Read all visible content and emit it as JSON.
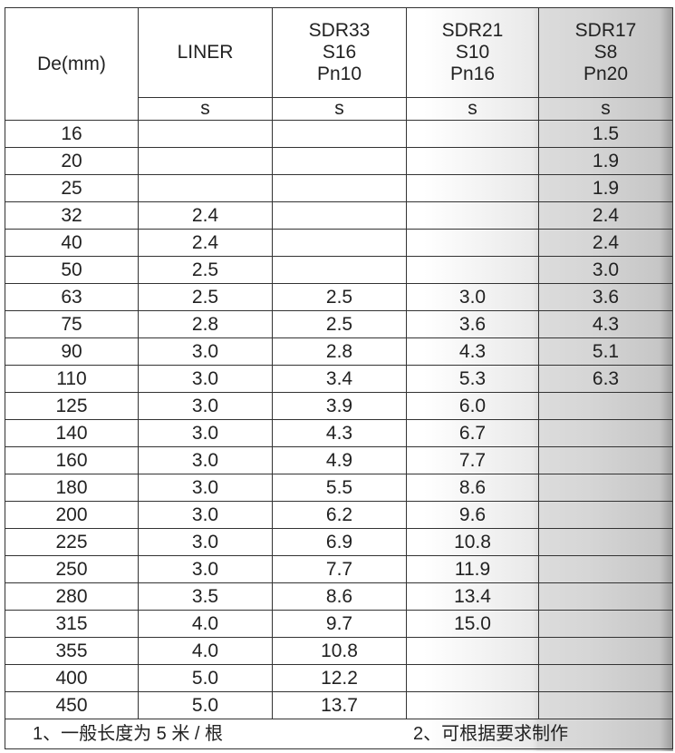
{
  "header": {
    "de": "De(mm)",
    "liner": "LINER",
    "sdr33": [
      "SDR33",
      "S16",
      "Pn10"
    ],
    "sdr21": [
      "SDR21",
      "S10",
      "Pn16"
    ],
    "sdr17": [
      "SDR17",
      "S8",
      "Pn20"
    ],
    "unit": "s"
  },
  "rows": [
    [
      "16",
      "",
      "",
      "",
      "1.5"
    ],
    [
      "20",
      "",
      "",
      "",
      "1.9"
    ],
    [
      "25",
      "",
      "",
      "",
      "1.9"
    ],
    [
      "32",
      "2.4",
      "",
      "",
      "2.4"
    ],
    [
      "40",
      "2.4",
      "",
      "",
      "2.4"
    ],
    [
      "50",
      "2.5",
      "",
      "",
      "3.0"
    ],
    [
      "63",
      "2.5",
      "2.5",
      "3.0",
      "3.6"
    ],
    [
      "75",
      "2.8",
      "2.5",
      "3.6",
      "4.3"
    ],
    [
      "90",
      "3.0",
      "2.8",
      "4.3",
      "5.1"
    ],
    [
      "110",
      "3.0",
      "3.4",
      "5.3",
      "6.3"
    ],
    [
      "125",
      "3.0",
      "3.9",
      "6.0",
      ""
    ],
    [
      "140",
      "3.0",
      "4.3",
      "6.7",
      ""
    ],
    [
      "160",
      "3.0",
      "4.9",
      "7.7",
      ""
    ],
    [
      "180",
      "3.0",
      "5.5",
      "8.6",
      ""
    ],
    [
      "200",
      "3.0",
      "6.2",
      "9.6",
      ""
    ],
    [
      "225",
      "3.0",
      "6.9",
      "10.8",
      ""
    ],
    [
      "250",
      "3.0",
      "7.7",
      "11.9",
      ""
    ],
    [
      "280",
      "3.5",
      "8.6",
      "13.4",
      ""
    ],
    [
      "315",
      "4.0",
      "9.7",
      "15.0",
      ""
    ],
    [
      "355",
      "4.0",
      "10.8",
      "",
      ""
    ],
    [
      "400",
      "5.0",
      "12.2",
      "",
      ""
    ],
    [
      "450",
      "5.0",
      "13.7",
      "",
      ""
    ]
  ],
  "footer": {
    "note1": "1、一般长度为 5 米 / 根",
    "note2": "2、可根据要求制作"
  },
  "colors": {
    "line": "#333333",
    "shade_light": "#e9e9e9",
    "shade_dark": "#c6c6c6"
  }
}
